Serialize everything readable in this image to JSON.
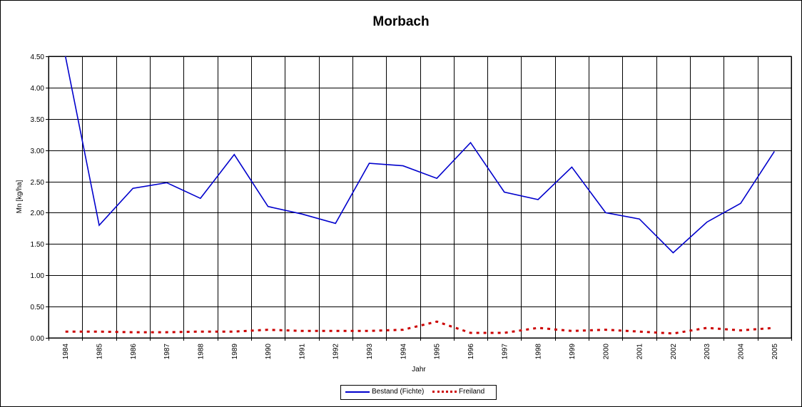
{
  "chart_data": {
    "type": "line",
    "title": "Morbach",
    "xlabel": "Jahr",
    "ylabel": "Mn [kg/ha]",
    "ylim": [
      0,
      4.5
    ],
    "yticks": [
      "0.00",
      "0.50",
      "1.00",
      "1.50",
      "2.00",
      "2.50",
      "3.00",
      "3.50",
      "4.00",
      "4.50"
    ],
    "categories": [
      "1984",
      "1985",
      "1986",
      "1987",
      "1988",
      "1989",
      "1990",
      "1991",
      "1992",
      "1993",
      "1994",
      "1995",
      "1996",
      "1997",
      "1998",
      "1999",
      "2000",
      "2001",
      "2002",
      "2003",
      "2004",
      "2005"
    ],
    "grid": true,
    "legend_position": "bottom",
    "series": [
      {
        "name": "Bestand (Fichte)",
        "color": "#0000cc",
        "style": "solid",
        "values": [
          4.5,
          1.8,
          2.39,
          2.48,
          2.23,
          2.93,
          2.1,
          1.98,
          1.83,
          2.79,
          2.75,
          2.55,
          3.12,
          2.33,
          2.21,
          2.73,
          2.0,
          1.9,
          1.36,
          1.85,
          2.15,
          2.98
        ]
      },
      {
        "name": "Freiland",
        "color": "#cc0000",
        "style": "dotted",
        "values": [
          0.1,
          0.1,
          0.09,
          0.09,
          0.1,
          0.1,
          0.13,
          0.11,
          0.11,
          0.11,
          0.13,
          0.26,
          0.08,
          0.08,
          0.16,
          0.11,
          0.13,
          0.1,
          0.07,
          0.16,
          0.12,
          0.16
        ]
      }
    ]
  }
}
